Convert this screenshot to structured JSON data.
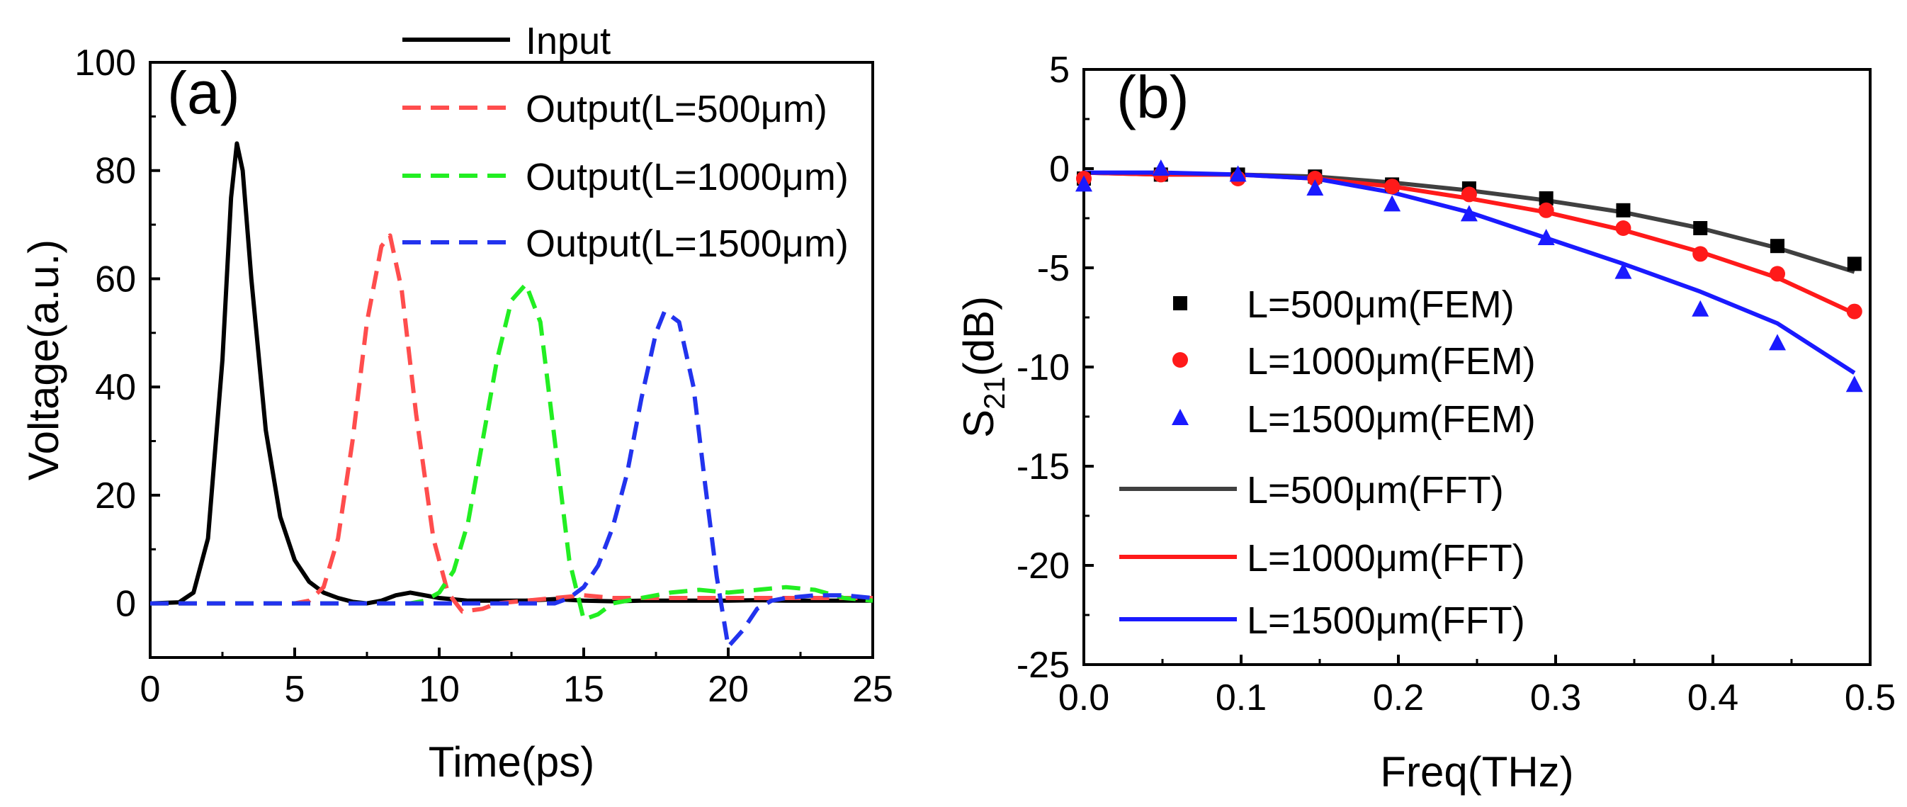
{
  "chart_data": [
    {
      "type": "line",
      "panel_label": "(a)",
      "xlabel": "Time(ps)",
      "ylabel": "Voltage(a.u.)",
      "xlim": [
        0,
        25
      ],
      "ylim": [
        -10,
        100
      ],
      "xticks": [
        0,
        5,
        10,
        15,
        20,
        25
      ],
      "yticks": [
        0,
        20,
        40,
        60,
        80,
        100
      ],
      "legend_position": "top-right",
      "series": [
        {
          "name": "Input",
          "color": "#000000",
          "style": "solid",
          "x": [
            0,
            1,
            1.5,
            2,
            2.5,
            2.8,
            3.0,
            3.2,
            3.5,
            4,
            4.5,
            5,
            5.5,
            6,
            6.5,
            7,
            7.5,
            8,
            8.5,
            9,
            10,
            11,
            12,
            13,
            14,
            15,
            16,
            17,
            18,
            19,
            20,
            21,
            22,
            23,
            24,
            25
          ],
          "y": [
            0,
            0.2,
            2,
            12,
            45,
            75,
            85,
            80,
            60,
            32,
            16,
            8,
            4,
            2,
            1,
            0.3,
            0,
            0.5,
            1.5,
            2,
            1,
            0.5,
            0.5,
            0.5,
            0.8,
            0.5,
            0.4,
            0.5,
            0.5,
            0.5,
            0.5,
            0.6,
            0.5,
            0.5,
            0.5,
            0.5
          ]
        },
        {
          "name": "Output(L=500μm)",
          "color": "#ff4d4d",
          "style": "dashed",
          "x": [
            0,
            5,
            5.5,
            6,
            6.5,
            7,
            7.5,
            8,
            8.3,
            8.7,
            9.2,
            9.8,
            10.3,
            10.8,
            11.5,
            12,
            13,
            14,
            15,
            16,
            17,
            18,
            19,
            20,
            21,
            22,
            23,
            24,
            25
          ],
          "y": [
            0,
            0,
            0.5,
            3,
            12,
            30,
            52,
            66,
            68,
            58,
            35,
            12,
            2,
            -1.5,
            -1,
            0,
            0.5,
            1,
            1.5,
            1,
            1,
            1,
            1,
            1,
            1,
            1,
            1,
            1,
            1
          ]
        },
        {
          "name": "Output(L=1000μm)",
          "color": "#22ee22",
          "style": "dashed",
          "x": [
            0,
            9,
            9.5,
            10,
            10.5,
            11,
            11.5,
            12,
            12.5,
            13,
            13.5,
            14,
            14.5,
            15,
            15.5,
            16,
            17,
            18,
            19,
            20,
            21,
            22,
            23,
            24,
            25
          ],
          "y": [
            0,
            0,
            0.5,
            2,
            6,
            15,
            30,
            45,
            56,
            59,
            52,
            30,
            8,
            -3,
            -2,
            0,
            1,
            2,
            2.5,
            2,
            2.5,
            3,
            2.5,
            1,
            0.5
          ]
        },
        {
          "name": "Output(L=1500μm)",
          "color": "#2233ee",
          "style": "dashed",
          "x": [
            0,
            14,
            14.5,
            15,
            15.5,
            16,
            16.5,
            17,
            17.5,
            17.8,
            18.3,
            18.8,
            19.2,
            19.6,
            20,
            20.5,
            21,
            21.5,
            22,
            23,
            24,
            25
          ],
          "y": [
            0,
            0,
            1,
            3,
            7,
            14,
            24,
            38,
            50,
            54,
            52,
            40,
            22,
            5,
            -8,
            -5,
            -1,
            0.5,
            1,
            1.5,
            1.5,
            1
          ]
        }
      ]
    },
    {
      "type": "scatter+line",
      "panel_label": "(b)",
      "xlabel": "Freq(THz)",
      "ylabel_main": "S",
      "ylabel_sub": "21",
      "ylabel_unit": "(dB)",
      "xlim": [
        0,
        0.5
      ],
      "ylim": [
        -25,
        5
      ],
      "xticks": [
        0.0,
        0.1,
        0.2,
        0.3,
        0.4,
        0.5
      ],
      "xtick_labels": [
        "0.0",
        "0.1",
        "0.2",
        "0.3",
        "0.4",
        "0.5"
      ],
      "yticks": [
        5,
        0,
        -5,
        -10,
        -15,
        -20,
        -25
      ],
      "legend_position": "bottom-left",
      "series": [
        {
          "name": "L=500μm(FEM)",
          "kind": "marker",
          "marker": "square",
          "color": "#000000",
          "x": [
            0,
            0.049,
            0.098,
            0.147,
            0.196,
            0.245,
            0.294,
            0.343,
            0.392,
            0.441,
            0.49
          ],
          "y": [
            -0.5,
            -0.3,
            -0.3,
            -0.4,
            -0.8,
            -1.0,
            -1.5,
            -2.1,
            -3.0,
            -3.9,
            -4.8
          ]
        },
        {
          "name": "L=1000μm(FEM)",
          "kind": "marker",
          "marker": "circle",
          "color": "#ff1a1a",
          "x": [
            0,
            0.049,
            0.098,
            0.147,
            0.196,
            0.245,
            0.294,
            0.343,
            0.392,
            0.441,
            0.49
          ],
          "y": [
            -0.5,
            -0.3,
            -0.5,
            -0.5,
            -0.9,
            -1.3,
            -2.1,
            -3.0,
            -4.3,
            -5.3,
            -7.2
          ]
        },
        {
          "name": "L=1500μm(FEM)",
          "kind": "marker",
          "marker": "triangle",
          "color": "#1a1aff",
          "x": [
            0,
            0.049,
            0.098,
            0.147,
            0.196,
            0.245,
            0.294,
            0.343,
            0.392,
            0.441,
            0.49
          ],
          "y": [
            -0.8,
            0.0,
            -0.3,
            -1.0,
            -1.8,
            -2.3,
            -3.5,
            -5.2,
            -7.1,
            -8.8,
            -10.9
          ]
        },
        {
          "name": "L=500μm(FFT)",
          "kind": "line",
          "color": "#404040",
          "x": [
            0,
            0.049,
            0.098,
            0.147,
            0.196,
            0.245,
            0.294,
            0.343,
            0.392,
            0.441,
            0.49
          ],
          "y": [
            -0.2,
            -0.3,
            -0.3,
            -0.4,
            -0.7,
            -1.1,
            -1.6,
            -2.2,
            -3.0,
            -4.0,
            -5.2
          ]
        },
        {
          "name": "L=1000μm(FFT)",
          "kind": "line",
          "color": "#ff1a1a",
          "x": [
            0,
            0.049,
            0.098,
            0.147,
            0.196,
            0.245,
            0.294,
            0.343,
            0.392,
            0.441,
            0.49
          ],
          "y": [
            -0.2,
            -0.3,
            -0.3,
            -0.5,
            -0.9,
            -1.5,
            -2.2,
            -3.1,
            -4.2,
            -5.5,
            -7.3
          ]
        },
        {
          "name": "L=1500μm(FFT)",
          "kind": "line",
          "color": "#1a1aff",
          "x": [
            0,
            0.049,
            0.098,
            0.147,
            0.196,
            0.245,
            0.294,
            0.343,
            0.392,
            0.441,
            0.49
          ],
          "y": [
            -0.2,
            -0.2,
            -0.3,
            -0.5,
            -1.2,
            -2.2,
            -3.5,
            -4.8,
            -6.2,
            -7.8,
            -10.3
          ]
        }
      ]
    }
  ]
}
